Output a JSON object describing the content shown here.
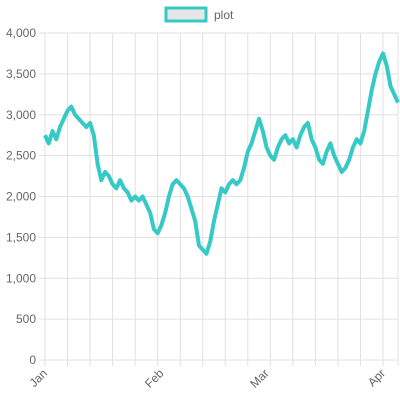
{
  "chart_data": {
    "type": "line",
    "categories": [
      "Jan",
      null,
      null,
      null,
      null,
      null,
      null,
      null,
      null,
      null,
      null,
      null,
      null,
      null,
      null,
      null,
      null,
      null,
      null,
      null,
      null,
      null,
      null,
      null,
      null,
      null,
      null,
      null,
      null,
      null,
      null,
      "Feb",
      null,
      null,
      null,
      null,
      null,
      null,
      null,
      null,
      null,
      null,
      null,
      null,
      null,
      null,
      null,
      null,
      null,
      null,
      null,
      null,
      null,
      null,
      null,
      null,
      null,
      null,
      null,
      "Mar",
      null,
      null,
      null,
      null,
      null,
      null,
      null,
      null,
      null,
      null,
      null,
      null,
      null,
      null,
      null,
      null,
      null,
      null,
      null,
      null,
      null,
      null,
      null,
      null,
      null,
      null,
      null,
      null,
      null,
      null,
      "Apr",
      null,
      null,
      null,
      null
    ],
    "series": [
      {
        "name": "plot",
        "color": "#36c9c6",
        "values": [
          2750,
          2650,
          2800,
          2700,
          2850,
          2950,
          3050,
          3100,
          3000,
          2950,
          2900,
          2850,
          2900,
          2750,
          2400,
          2200,
          2300,
          2250,
          2150,
          2100,
          2200,
          2100,
          2050,
          1950,
          2000,
          1950,
          2000,
          1900,
          1800,
          1600,
          1550,
          1650,
          1800,
          2000,
          2150,
          2200,
          2150,
          2100,
          2000,
          1850,
          1700,
          1400,
          1350,
          1300,
          1450,
          1700,
          1900,
          2100,
          2050,
          2150,
          2200,
          2150,
          2200,
          2350,
          2550,
          2650,
          2800,
          2950,
          2800,
          2600,
          2500,
          2450,
          2600,
          2700,
          2750,
          2650,
          2700,
          2600,
          2750,
          2850,
          2900,
          2700,
          2600,
          2450,
          2400,
          2550,
          2650,
          2500,
          2400,
          2300,
          2350,
          2450,
          2600,
          2700,
          2650,
          2800,
          3050,
          3300,
          3500,
          3650,
          3750,
          3600,
          3350,
          3250,
          3150
        ]
      }
    ],
    "ylim": [
      0,
      4000
    ],
    "yticks": [
      0,
      500,
      {
        "value": 1000,
        "label": "1,000"
      },
      {
        "value": 1500,
        "label": "1,500"
      },
      {
        "value": 2000,
        "label": "2,000"
      },
      {
        "value": 2500,
        "label": "2,500"
      },
      {
        "value": 3000,
        "label": "3,000"
      },
      {
        "value": 3500,
        "label": "3,500"
      },
      {
        "value": 4000,
        "label": "4,000"
      }
    ],
    "grid": true
  }
}
